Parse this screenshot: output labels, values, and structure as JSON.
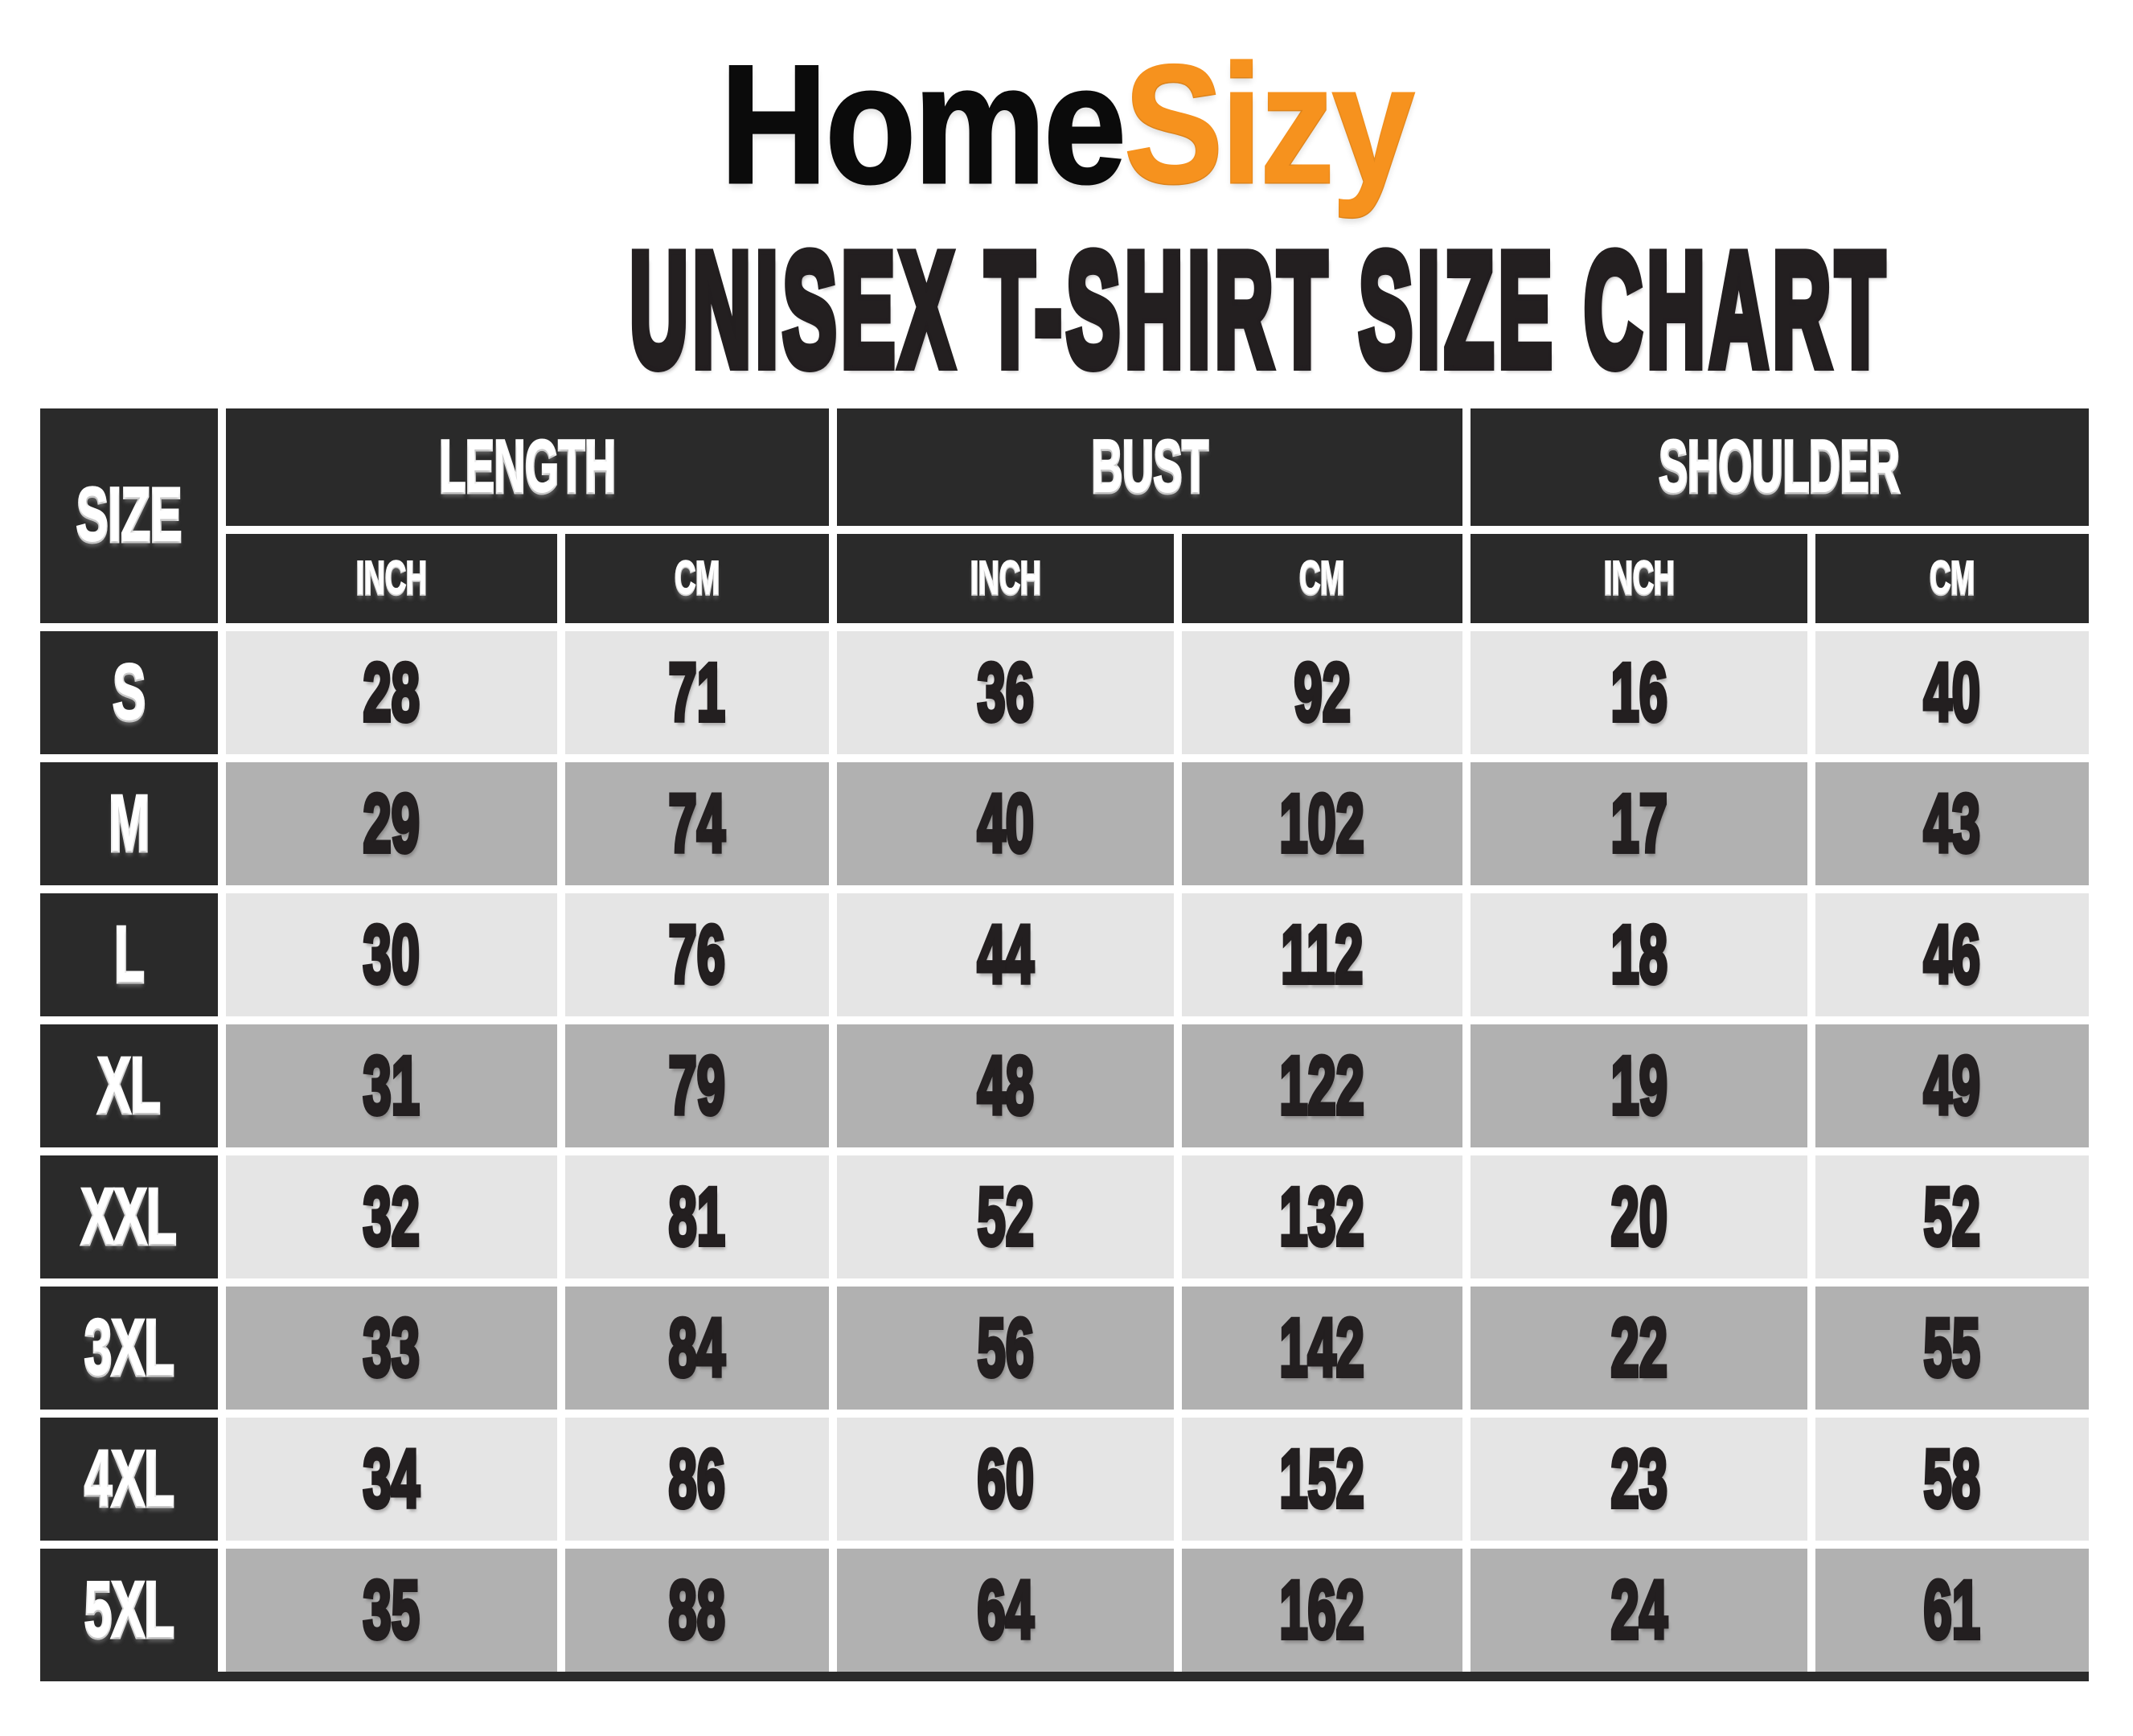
{
  "logo": {
    "black_text": "Home",
    "orange_text": "Sizy"
  },
  "title": "UNISEX T-SHIRT SIZE CHART",
  "colors": {
    "page_bg": "#ffffff",
    "logo_black": "#0b0b0b",
    "accent_orange": "#f6921e",
    "header_bg": "#2a2a2a",
    "row_light": "#e5e5e5",
    "row_mid": "#b1b1b1",
    "text_dark": "#231f20"
  },
  "table": {
    "corner_label": "SIZE",
    "groups": [
      {
        "label": "LENGTH"
      },
      {
        "label": "BUST"
      },
      {
        "label": "SHOULDER"
      }
    ],
    "units": [
      "INCH",
      "CM",
      "INCH",
      "CM",
      "INCH",
      "CM"
    ]
  },
  "chart_data": {
    "type": "table",
    "title": "UNISEX T-SHIRT SIZE CHART",
    "column_groups": [
      "LENGTH",
      "BUST",
      "SHOULDER"
    ],
    "columns": [
      "SIZE",
      "LENGTH INCH",
      "LENGTH CM",
      "BUST INCH",
      "BUST CM",
      "SHOULDER INCH",
      "SHOULDER CM"
    ],
    "rows": [
      [
        "S",
        28,
        71,
        36,
        92,
        16,
        40
      ],
      [
        "M",
        29,
        74,
        40,
        102,
        17,
        43
      ],
      [
        "L",
        30,
        76,
        44,
        112,
        18,
        46
      ],
      [
        "XL",
        31,
        79,
        48,
        122,
        19,
        49
      ],
      [
        "XXL",
        32,
        81,
        52,
        132,
        20,
        52
      ],
      [
        "3XL",
        33,
        84,
        56,
        142,
        22,
        55
      ],
      [
        "4XL",
        34,
        86,
        60,
        152,
        23,
        58
      ],
      [
        "5XL",
        35,
        88,
        64,
        162,
        24,
        61
      ]
    ]
  }
}
